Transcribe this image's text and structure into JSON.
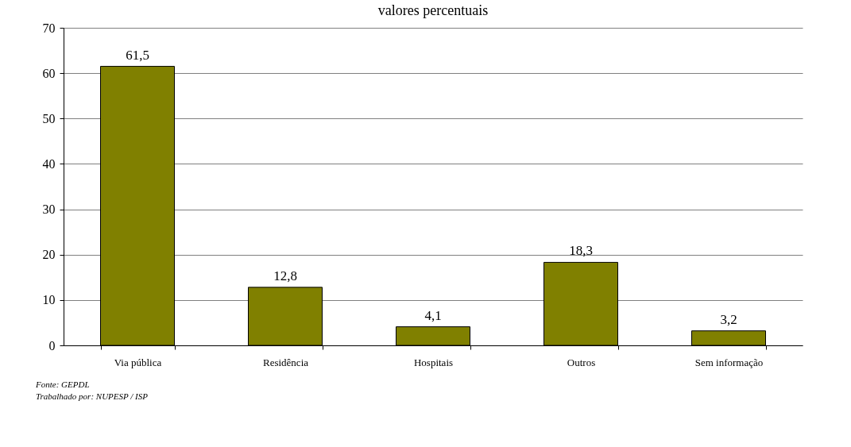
{
  "chart_data": {
    "type": "bar",
    "title": "valores percentuais",
    "categories": [
      "Via pública",
      "Residência",
      "Hospitais",
      "Outros",
      "Sem informação"
    ],
    "values": [
      61.5,
      12.8,
      4.1,
      18.3,
      3.2
    ],
    "color": "#808000",
    "value_labels": [
      "61,5",
      "12,8",
      "4,1",
      "18,3",
      "3,2"
    ],
    "ylim": [
      0,
      70
    ],
    "yticks": [
      0,
      10,
      20,
      30,
      40,
      50,
      60,
      70
    ],
    "grid": "y",
    "annotations": [
      "Fonte: GEPDL",
      "Trabalhado por: NUPESP / ISP"
    ]
  }
}
